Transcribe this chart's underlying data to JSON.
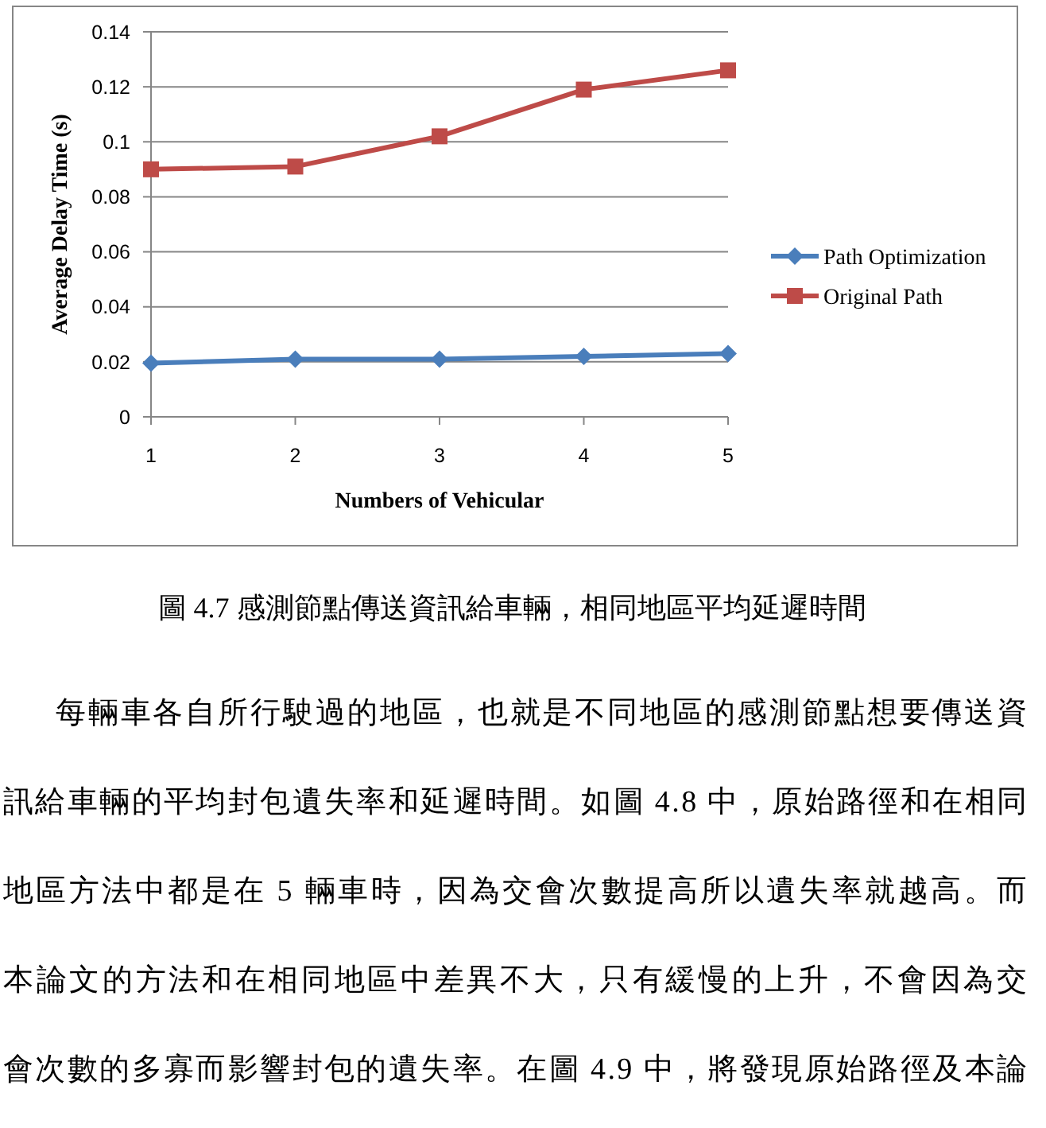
{
  "chart_data": {
    "type": "line",
    "xlabel": "Numbers of Vehicular",
    "ylabel": "Average Delay Time (s)",
    "categories": [
      "1",
      "2",
      "3",
      "4",
      "5"
    ],
    "series": [
      {
        "name": "Path Optimization",
        "color": "#4a7ebb",
        "marker": "diamond",
        "values": [
          0.0195,
          0.021,
          0.021,
          0.022,
          0.023
        ]
      },
      {
        "name": "Original Path",
        "color": "#be4b48",
        "marker": "square",
        "values": [
          0.09,
          0.091,
          0.102,
          0.119,
          0.126
        ]
      }
    ],
    "ylim": [
      0,
      0.14
    ],
    "yticks": [
      0,
      0.02,
      0.04,
      0.06,
      0.08,
      0.1,
      0.12,
      0.14
    ],
    "grid": "y",
    "legend": "right",
    "line_style": "solid",
    "annotations": [
      "圖 4.7 感測節點傳送資訊給車輛，相同地區平均延遲時間",
      "每輛車各自所行駛過的地區，也就是不同地區的感測節點想要傳送資",
      "訊給車輛的平均封包遺失率和延遲時間。如圖 4.8 中，原始路徑和在相同",
      "地區方法中都是在 5 輛車時，因為交會次數提高所以遺失率就越高。而",
      "本論文的方法和在相同地區中差異不大，只有緩慢的上升，不會因為交",
      "會次數的多寡而影響封包的遺失率。在圖 4.9 中，將發現原始路徑及本論"
    ]
  }
}
